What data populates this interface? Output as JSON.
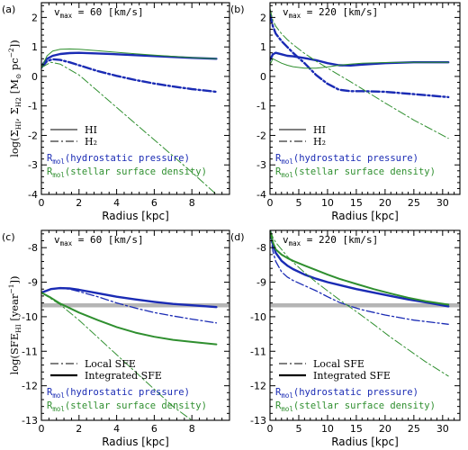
{
  "colors": {
    "blue": "#1a2bb4",
    "green": "#2f8f2f",
    "gray": "#b5b5b5",
    "black": "#000000"
  },
  "chart_data": [
    {
      "panel": "(a)",
      "type": "line",
      "annotation": "v_max = 60 [km/s]",
      "annotation_parts": {
        "sym": "v",
        "sub": "max",
        "rest": " = 60 [km/s]"
      },
      "xlabel": "Radius [kpc]",
      "ylabel": "log(Σ_HI, Σ_H2 [M_⊙ pc^-2])",
      "xlim": [
        0,
        10
      ],
      "ylim": [
        -4,
        2.5
      ],
      "xticks": [
        0,
        2,
        4,
        6,
        8
      ],
      "yticks": [
        -4,
        -3,
        -2,
        -1,
        0,
        1,
        2
      ],
      "legend": [
        {
          "label": "HI",
          "style": "solid"
        },
        {
          "label": "H₂",
          "style": "dashdot"
        }
      ],
      "rmol_labels": [
        {
          "text": "R_mol(hydrostatic pressure)",
          "pre": "R",
          "sub": "mol",
          "post": "(hydrostatic pressure)",
          "color": "blue"
        },
        {
          "text": "R_mol(stellar surface density)",
          "pre": "R",
          "sub": "mol",
          "post": "(stellar surface density)",
          "color": "green"
        }
      ],
      "series": [
        {
          "color": "blue",
          "style": "solid",
          "width": 2.4,
          "x": [
            0,
            0.3,
            0.6,
            1.0,
            1.5,
            2,
            3,
            4,
            5,
            6,
            7,
            8,
            9.3
          ],
          "y": [
            0.35,
            0.6,
            0.7,
            0.76,
            0.79,
            0.8,
            0.78,
            0.75,
            0.72,
            0.69,
            0.66,
            0.63,
            0.6
          ]
        },
        {
          "color": "blue",
          "style": "dashdot",
          "width": 2.4,
          "x": [
            0,
            0.3,
            0.6,
            1.0,
            1.5,
            2,
            3,
            4,
            5,
            6,
            7,
            8,
            9.3
          ],
          "y": [
            0.3,
            0.52,
            0.58,
            0.56,
            0.48,
            0.38,
            0.18,
            0.02,
            -0.12,
            -0.24,
            -0.34,
            -0.43,
            -0.52
          ]
        },
        {
          "color": "green",
          "style": "solid",
          "width": 1,
          "x": [
            0,
            0.3,
            0.6,
            1.0,
            1.5,
            2,
            3,
            4,
            5,
            6,
            7,
            8,
            9.3
          ],
          "y": [
            0.3,
            0.7,
            0.86,
            0.92,
            0.93,
            0.92,
            0.87,
            0.82,
            0.77,
            0.72,
            0.68,
            0.64,
            0.6
          ]
        },
        {
          "color": "green",
          "style": "dashdot",
          "width": 1,
          "x": [
            0,
            0.5,
            1,
            2,
            3,
            4,
            5,
            6,
            7,
            8,
            9.3
          ],
          "y": [
            0.3,
            0.48,
            0.42,
            0.05,
            -0.5,
            -1.05,
            -1.6,
            -2.15,
            -2.7,
            -3.25,
            -4.0
          ]
        }
      ]
    },
    {
      "panel": "(b)",
      "type": "line",
      "annotation": "v_max = 220 [km/s]",
      "annotation_parts": {
        "sym": "v",
        "sub": "max",
        "rest": " = 220 [km/s]"
      },
      "xlabel": "Radius [kpc]",
      "ylabel": "",
      "xlim": [
        0,
        33
      ],
      "ylim": [
        -4,
        2.5
      ],
      "xticks": [
        0,
        5,
        10,
        15,
        20,
        25,
        30
      ],
      "yticks": [
        -4,
        -3,
        -2,
        -1,
        0,
        1,
        2
      ],
      "legend": [
        {
          "label": "HI",
          "style": "solid"
        },
        {
          "label": "H₂",
          "style": "dashdot"
        }
      ],
      "rmol_labels": [
        {
          "text": "R_mol(hydrostatic pressure)",
          "pre": "R",
          "sub": "mol",
          "post": "(hydrostatic pressure)",
          "color": "blue"
        },
        {
          "text": "R_mol(stellar surface density)",
          "pre": "R",
          "sub": "mol",
          "post": "(stellar surface density)",
          "color": "green"
        }
      ],
      "series": [
        {
          "color": "blue",
          "style": "solid",
          "width": 2.4,
          "x": [
            0,
            0.5,
            1,
            2,
            3,
            4,
            6,
            8,
            10,
            12,
            14,
            16,
            20,
            25,
            31
          ],
          "y": [
            0.55,
            0.75,
            0.8,
            0.75,
            0.7,
            0.68,
            0.62,
            0.55,
            0.45,
            0.38,
            0.37,
            0.4,
            0.45,
            0.48,
            0.48
          ]
        },
        {
          "color": "blue",
          "style": "dashdot",
          "width": 2.4,
          "x": [
            0,
            0.5,
            1,
            2,
            3,
            4,
            6,
            8,
            10,
            12,
            14,
            16,
            20,
            25,
            31
          ],
          "y": [
            2.1,
            1.7,
            1.45,
            1.2,
            1.0,
            0.8,
            0.45,
            0.05,
            -0.25,
            -0.45,
            -0.5,
            -0.5,
            -0.52,
            -0.6,
            -0.7
          ]
        },
        {
          "color": "green",
          "style": "solid",
          "width": 1,
          "x": [
            0,
            0.5,
            1,
            2,
            3,
            4,
            6,
            8,
            10,
            12,
            14,
            16,
            20,
            25,
            31
          ],
          "y": [
            0.4,
            0.6,
            0.55,
            0.45,
            0.38,
            0.33,
            0.28,
            0.28,
            0.32,
            0.38,
            0.42,
            0.45,
            0.47,
            0.48,
            0.48
          ]
        },
        {
          "color": "green",
          "style": "dashdot",
          "width": 1,
          "x": [
            0,
            0.5,
            1,
            2,
            3,
            4,
            6,
            8,
            10,
            12,
            14,
            16,
            20,
            25,
            31
          ],
          "y": [
            2.3,
            1.9,
            1.7,
            1.45,
            1.25,
            1.08,
            0.78,
            0.52,
            0.28,
            0.05,
            -0.18,
            -0.42,
            -0.9,
            -1.48,
            -2.1
          ]
        }
      ]
    },
    {
      "panel": "(c)",
      "type": "line",
      "annotation": "v_max = 60 [km/s]",
      "annotation_parts": {
        "sym": "v",
        "sub": "max",
        "rest": " = 60 [km/s]"
      },
      "xlabel": "Radius [kpc]",
      "ylabel": "log(SFE_HI [year^-1])",
      "xlim": [
        0,
        10
      ],
      "ylim": [
        -13,
        -7.5
      ],
      "xticks": [
        0,
        2,
        4,
        6,
        8
      ],
      "yticks": [
        -13,
        -12,
        -11,
        -10,
        -9,
        -8
      ],
      "hline": -9.67,
      "legend": [
        {
          "label": "Local SFE",
          "style": "dashdot"
        },
        {
          "label": "Integrated SFE",
          "style": "solid"
        }
      ],
      "rmol_labels": [
        {
          "text": "R_mol(hydrostatic pressure)",
          "pre": "R",
          "sub": "mol",
          "post": "(hydrostatic pressure)",
          "color": "blue"
        },
        {
          "text": "R_mol(stellar surface density)",
          "pre": "R",
          "sub": "mol",
          "post": "(stellar surface density)",
          "color": "green"
        }
      ],
      "series": [
        {
          "color": "blue",
          "style": "solid",
          "width": 2.4,
          "x": [
            0,
            0.5,
            1,
            1.5,
            2,
            3,
            4,
            5,
            6,
            7,
            8,
            9.3
          ],
          "y": [
            -9.3,
            -9.2,
            -9.17,
            -9.18,
            -9.22,
            -9.32,
            -9.42,
            -9.5,
            -9.57,
            -9.63,
            -9.67,
            -9.72
          ]
        },
        {
          "color": "blue",
          "style": "dashdot",
          "width": 1.3,
          "x": [
            0,
            0.5,
            1,
            1.5,
            2,
            3,
            4,
            5,
            6,
            7,
            8,
            9.3
          ],
          "y": [
            -9.3,
            -9.2,
            -9.18,
            -9.2,
            -9.27,
            -9.42,
            -9.6,
            -9.75,
            -9.88,
            -9.98,
            -10.07,
            -10.18
          ]
        },
        {
          "color": "green",
          "style": "solid",
          "width": 2,
          "x": [
            0,
            0.5,
            1,
            2,
            3,
            4,
            5,
            6,
            7,
            8,
            9.3
          ],
          "y": [
            -9.3,
            -9.45,
            -9.62,
            -9.88,
            -10.1,
            -10.3,
            -10.46,
            -10.58,
            -10.67,
            -10.73,
            -10.8
          ]
        },
        {
          "color": "green",
          "style": "dashdot",
          "width": 1,
          "x": [
            0,
            1,
            2,
            3,
            4,
            5,
            6,
            7,
            8,
            8.8
          ],
          "y": [
            -9.3,
            -9.65,
            -10.1,
            -10.6,
            -11.1,
            -11.6,
            -12.1,
            -12.6,
            -13.0,
            -13.3
          ]
        }
      ]
    },
    {
      "panel": "(d)",
      "type": "line",
      "annotation": "v_max = 220 [km/s]",
      "annotation_parts": {
        "sym": "v",
        "sub": "max",
        "rest": " = 220 [km/s]"
      },
      "xlabel": "Radius [kpc]",
      "ylabel": "",
      "xlim": [
        0,
        33
      ],
      "ylim": [
        -13,
        -7.5
      ],
      "xticks": [
        0,
        5,
        10,
        15,
        20,
        25,
        30
      ],
      "yticks": [
        -13,
        -12,
        -11,
        -10,
        -9,
        -8
      ],
      "hline": -9.67,
      "legend": [
        {
          "label": "Local SFE",
          "style": "dashdot"
        },
        {
          "label": "Integrated SFE",
          "style": "solid"
        }
      ],
      "rmol_labels": [
        {
          "text": "R_mol(hydrostatic pressure)",
          "pre": "R",
          "sub": "mol",
          "post": "(hydrostatic pressure)",
          "color": "blue"
        },
        {
          "text": "R_mol(stellar surface density)",
          "pre": "R",
          "sub": "mol",
          "post": "(stellar surface density)",
          "color": "green"
        }
      ],
      "series": [
        {
          "color": "blue",
          "style": "solid",
          "width": 2.4,
          "x": [
            0,
            0.5,
            1,
            2,
            3,
            4,
            6,
            8,
            10,
            12,
            15,
            18,
            21,
            24,
            27,
            31
          ],
          "y": [
            -7.5,
            -7.9,
            -8.15,
            -8.38,
            -8.52,
            -8.62,
            -8.78,
            -8.9,
            -9.0,
            -9.08,
            -9.2,
            -9.3,
            -9.4,
            -9.5,
            -9.58,
            -9.7
          ]
        },
        {
          "color": "blue",
          "style": "dashdot",
          "width": 1.3,
          "x": [
            0,
            0.5,
            1,
            2,
            3,
            4,
            6,
            8,
            10,
            12,
            14,
            16,
            20,
            25,
            31
          ],
          "y": [
            -7.5,
            -8.1,
            -8.4,
            -8.7,
            -8.85,
            -8.95,
            -9.1,
            -9.25,
            -9.42,
            -9.58,
            -9.7,
            -9.8,
            -9.95,
            -10.1,
            -10.22
          ]
        },
        {
          "color": "green",
          "style": "solid",
          "width": 2,
          "x": [
            0,
            0.5,
            1,
            2,
            3,
            4,
            6,
            8,
            10,
            12,
            15,
            18,
            21,
            24,
            27,
            31
          ],
          "y": [
            -7.5,
            -7.85,
            -8.05,
            -8.2,
            -8.3,
            -8.38,
            -8.52,
            -8.65,
            -8.78,
            -8.9,
            -9.05,
            -9.2,
            -9.33,
            -9.45,
            -9.55,
            -9.65
          ]
        },
        {
          "color": "green",
          "style": "dashdot",
          "width": 1,
          "x": [
            0,
            0.5,
            1,
            2,
            3,
            4,
            6,
            8,
            10,
            12,
            15,
            18,
            21,
            24,
            27,
            31
          ],
          "y": [
            -7.5,
            -7.7,
            -7.85,
            -8.05,
            -8.25,
            -8.42,
            -8.72,
            -9.0,
            -9.25,
            -9.5,
            -9.85,
            -10.22,
            -10.6,
            -10.95,
            -11.3,
            -11.72
          ]
        }
      ]
    }
  ]
}
